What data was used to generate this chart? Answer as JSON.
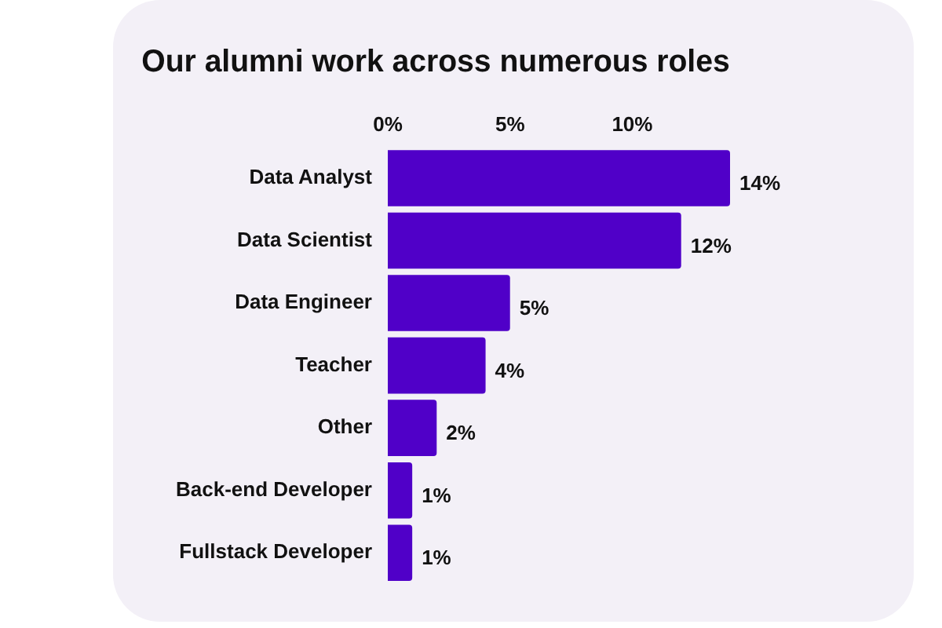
{
  "chart_data": {
    "type": "bar",
    "orientation": "horizontal",
    "title": "Our alumni work across numerous roles",
    "categories": [
      "Data Analyst",
      "Data Scientist",
      "Data Engineer",
      "Teacher",
      "Other",
      "Back-end Developer",
      "Fullstack Developer"
    ],
    "values": [
      14,
      12,
      5,
      4,
      2,
      1,
      1
    ],
    "value_labels": [
      "14%",
      "12%",
      "5%",
      "4%",
      "2%",
      "1%",
      "1%"
    ],
    "color": "#5000c8",
    "xlim": [
      0,
      14
    ],
    "xticks": [
      {
        "value": 0,
        "label": "0%"
      },
      {
        "value": 5,
        "label": "5%"
      },
      {
        "value": 10,
        "label": "10%"
      }
    ],
    "grid": false,
    "legend": false
  }
}
